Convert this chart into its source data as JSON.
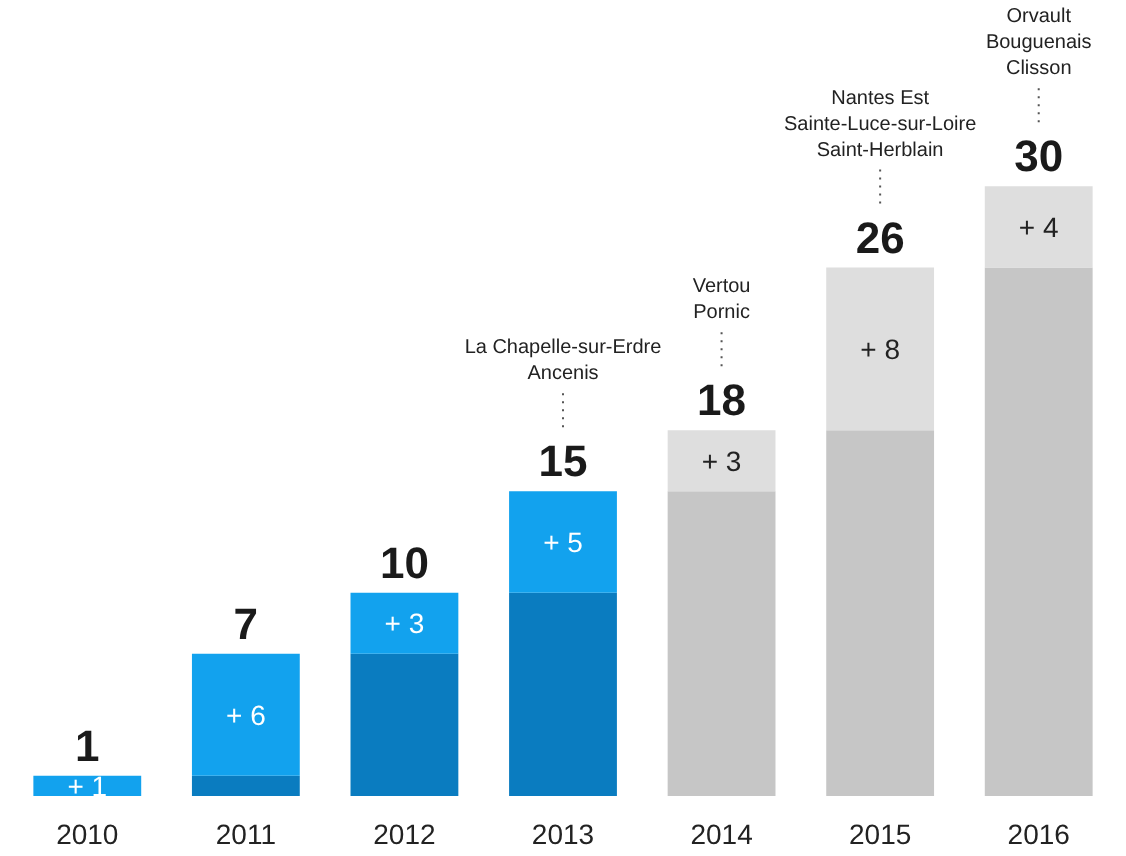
{
  "chart_data": {
    "type": "bar",
    "stacked": true,
    "categories": [
      "2010",
      "2011",
      "2012",
      "2013",
      "2014",
      "2015",
      "2016"
    ],
    "series": [
      {
        "colors": [
          "#0a7cc0",
          "#0a7cc0",
          "#0a7cc0",
          "#0a7cc0",
          "#c6c6c6",
          "#c6c6c6",
          "#c6c6c6"
        ],
        "values": [
          0,
          1,
          7,
          10,
          15,
          18,
          26
        ]
      },
      {
        "colors": [
          "#12a2ee",
          "#12a2ee",
          "#12a2ee",
          "#12a2ee",
          "#dedede",
          "#dedede",
          "#dedede"
        ],
        "values": [
          1,
          6,
          3,
          5,
          3,
          8,
          4
        ],
        "value_labels": [
          "+ 1",
          "+ 6",
          "+ 3",
          "+ 5",
          "+ 3",
          "+ 8",
          "+ 4"
        ]
      }
    ],
    "totals": [
      "1",
      "7",
      "10",
      "15",
      "18",
      "26",
      "30"
    ],
    "annotations": [
      "La Chapelle-sur-Erdre\nAncenis",
      "Vertou\nPornic",
      "Nantes Est\nSainte-Luce-sur-Loire\nSaint-Herblain",
      "Orvault\nBouguenais\nClisson"
    ]
  }
}
